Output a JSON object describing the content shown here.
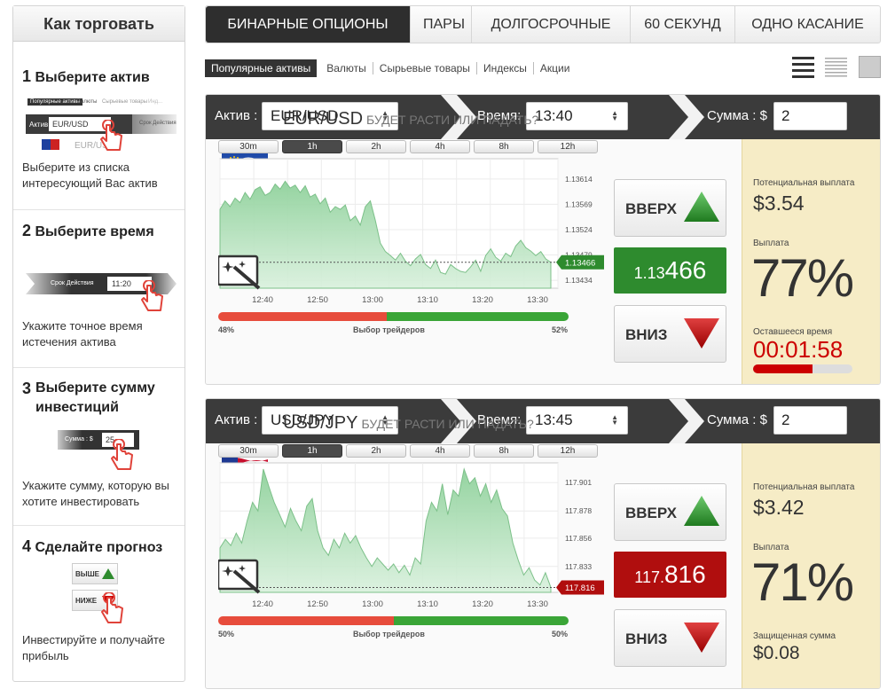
{
  "sidebar": {
    "title": "Как торговать",
    "steps": [
      {
        "num": "1",
        "title": "Выберите актив",
        "text": "Выберите из списка интересующий Вас актив",
        "mini": {
          "tabs": [
            "Популярные активы",
            "Валюты",
            "Сырьевые товары",
            "Инд..."
          ],
          "label": "Актив",
          "value": "EUR/USD",
          "ghost": "Срок Действия",
          "pair": "EUR/USD"
        }
      },
      {
        "num": "2",
        "title": "Выберите время",
        "text": "Укажите точное время истечения актива",
        "mini": {
          "label": "Срок Действия",
          "value": "11:20"
        }
      },
      {
        "num": "3",
        "title": "Выберите сумму инвестиций",
        "text": "Укажите сумму, которую вы хотите инвестировать",
        "mini": {
          "label": "Сумма : $",
          "value": "25"
        }
      },
      {
        "num": "4",
        "title": "Сделайте прогноз",
        "text": "Инвестируйте и получайте прибыль",
        "mini": {
          "up": "ВЫШЕ",
          "down": "НИЖЕ"
        }
      }
    ]
  },
  "tabs": [
    "БИНАРНЫЕ ОПЦИОНЫ",
    "ПАРЫ",
    "ДОЛГОСРОЧНЫЕ",
    "60 СЕКУНД",
    "ОДНО КАСАНИЕ"
  ],
  "subnav": [
    "Популярные активы",
    "Валюты",
    "Сырьевые товары",
    "Индексы",
    "Акции"
  ],
  "bar_labels": {
    "asset": "Актив :",
    "time": "Время:",
    "amount": "Сумма : $"
  },
  "timeframes": [
    "30m",
    "1h",
    "2h",
    "4h",
    "8h",
    "12h"
  ],
  "labels": {
    "up": "ВВЕРХ",
    "down": "ВНИЗ",
    "traders": "Выбор трейдеров",
    "question": "БУДЕТ РАСТИ ИЛИ ПАДАТЬ?"
  },
  "colors": {
    "up_green": "#2e8b2e",
    "down_red": "#b00e0e",
    "panel_yellow": "#f6ecc6",
    "bar_dark": "#3b3b3b"
  },
  "panels": [
    {
      "asset": "EUR/USD",
      "time": "13:40",
      "amount": "2",
      "flag_left": "eu-flag-icon",
      "flag_right": "us-flag-icon",
      "price_small": "1.13",
      "price_big": "466",
      "price_color": "#2e8b2e",
      "red_pct": "48%",
      "green_pct": "52%",
      "info": [
        {
          "label": "Потенциальная выплата",
          "value": "$3.54"
        },
        {
          "label": "Выплата",
          "value": "77%"
        },
        {
          "label": "Оставшееся время",
          "value": "00:01:58"
        }
      ],
      "timer_progress": 0.6
    },
    {
      "asset": "USD/JPY",
      "time": "13:45",
      "amount": "2",
      "flag_left": "us-flag-icon",
      "flag_right": "jp-flag-icon",
      "price_small": "117.",
      "price_big": "816",
      "price_color": "#b00e0e",
      "red_pct": "50%",
      "green_pct": "50%",
      "info": [
        {
          "label": "Потенциальная выплата",
          "value": "$3.42"
        },
        {
          "label": "Выплата",
          "value": "71%"
        },
        {
          "label": "Защищенная сумма",
          "value": "$0.08"
        }
      ]
    }
  ],
  "chart_data": [
    {
      "type": "area",
      "title": "EUR/USD",
      "x_ticks": [
        "12:40",
        "12:50",
        "13:00",
        "13:10",
        "13:20",
        "13:30"
      ],
      "y_ticks": [
        "1.13614",
        "1.13569",
        "1.13524",
        "1.13479",
        "1.13434"
      ],
      "ylim": [
        1.1342,
        1.1365
      ],
      "current": "1.13466",
      "values": [
        1.1356,
        1.13575,
        1.13565,
        1.1358,
        1.13572,
        1.1359,
        1.13578,
        1.13595,
        1.136,
        1.13585,
        1.1359,
        1.13605,
        1.13596,
        1.1361,
        1.13598,
        1.13603,
        1.1359,
        1.13602,
        1.13582,
        1.13587,
        1.1357,
        1.1358,
        1.13555,
        1.13565,
        1.1356,
        1.13568,
        1.1354,
        1.13548,
        1.13532,
        1.13565,
        1.13575,
        1.1354,
        1.135,
        1.13485,
        1.13478,
        1.1347,
        1.13482,
        1.13468,
        1.1346,
        1.13472,
        1.1348,
        1.13462,
        1.13455,
        1.1347,
        1.13448,
        1.13445,
        1.13462,
        1.13455,
        1.1345,
        1.13448,
        1.13458,
        1.1347,
        1.1345,
        1.13478,
        1.1349,
        1.13475,
        1.13468,
        1.13482,
        1.13476,
        1.13495,
        1.13505,
        1.13492,
        1.13486,
        1.13478,
        1.13485,
        1.13472,
        1.13466
      ]
    },
    {
      "type": "area",
      "title": "USD/JPY",
      "x_ticks": [
        "12:40",
        "12:50",
        "13:00",
        "13:10",
        "13:20",
        "13:30"
      ],
      "y_ticks": [
        "117.901",
        "117.878",
        "117.856",
        "117.833"
      ],
      "ylim": [
        117.812,
        117.917
      ],
      "current": "117.816",
      "values": [
        117.848,
        117.855,
        117.85,
        117.86,
        117.852,
        117.87,
        117.885,
        117.878,
        117.912,
        117.898,
        117.885,
        117.875,
        117.865,
        117.88,
        117.87,
        117.862,
        117.882,
        117.888,
        117.862,
        117.848,
        117.842,
        117.855,
        117.848,
        117.86,
        117.852,
        117.858,
        117.848,
        117.84,
        117.833,
        117.84,
        117.835,
        117.83,
        117.835,
        117.828,
        117.834,
        117.826,
        117.84,
        117.835,
        117.87,
        117.885,
        117.878,
        117.9,
        117.875,
        117.895,
        117.89,
        117.912,
        117.9,
        117.905,
        117.89,
        117.9,
        117.885,
        117.895,
        117.88,
        117.874,
        117.852,
        117.838,
        117.826,
        117.832,
        117.822,
        117.818,
        117.828,
        117.816
      ]
    }
  ]
}
